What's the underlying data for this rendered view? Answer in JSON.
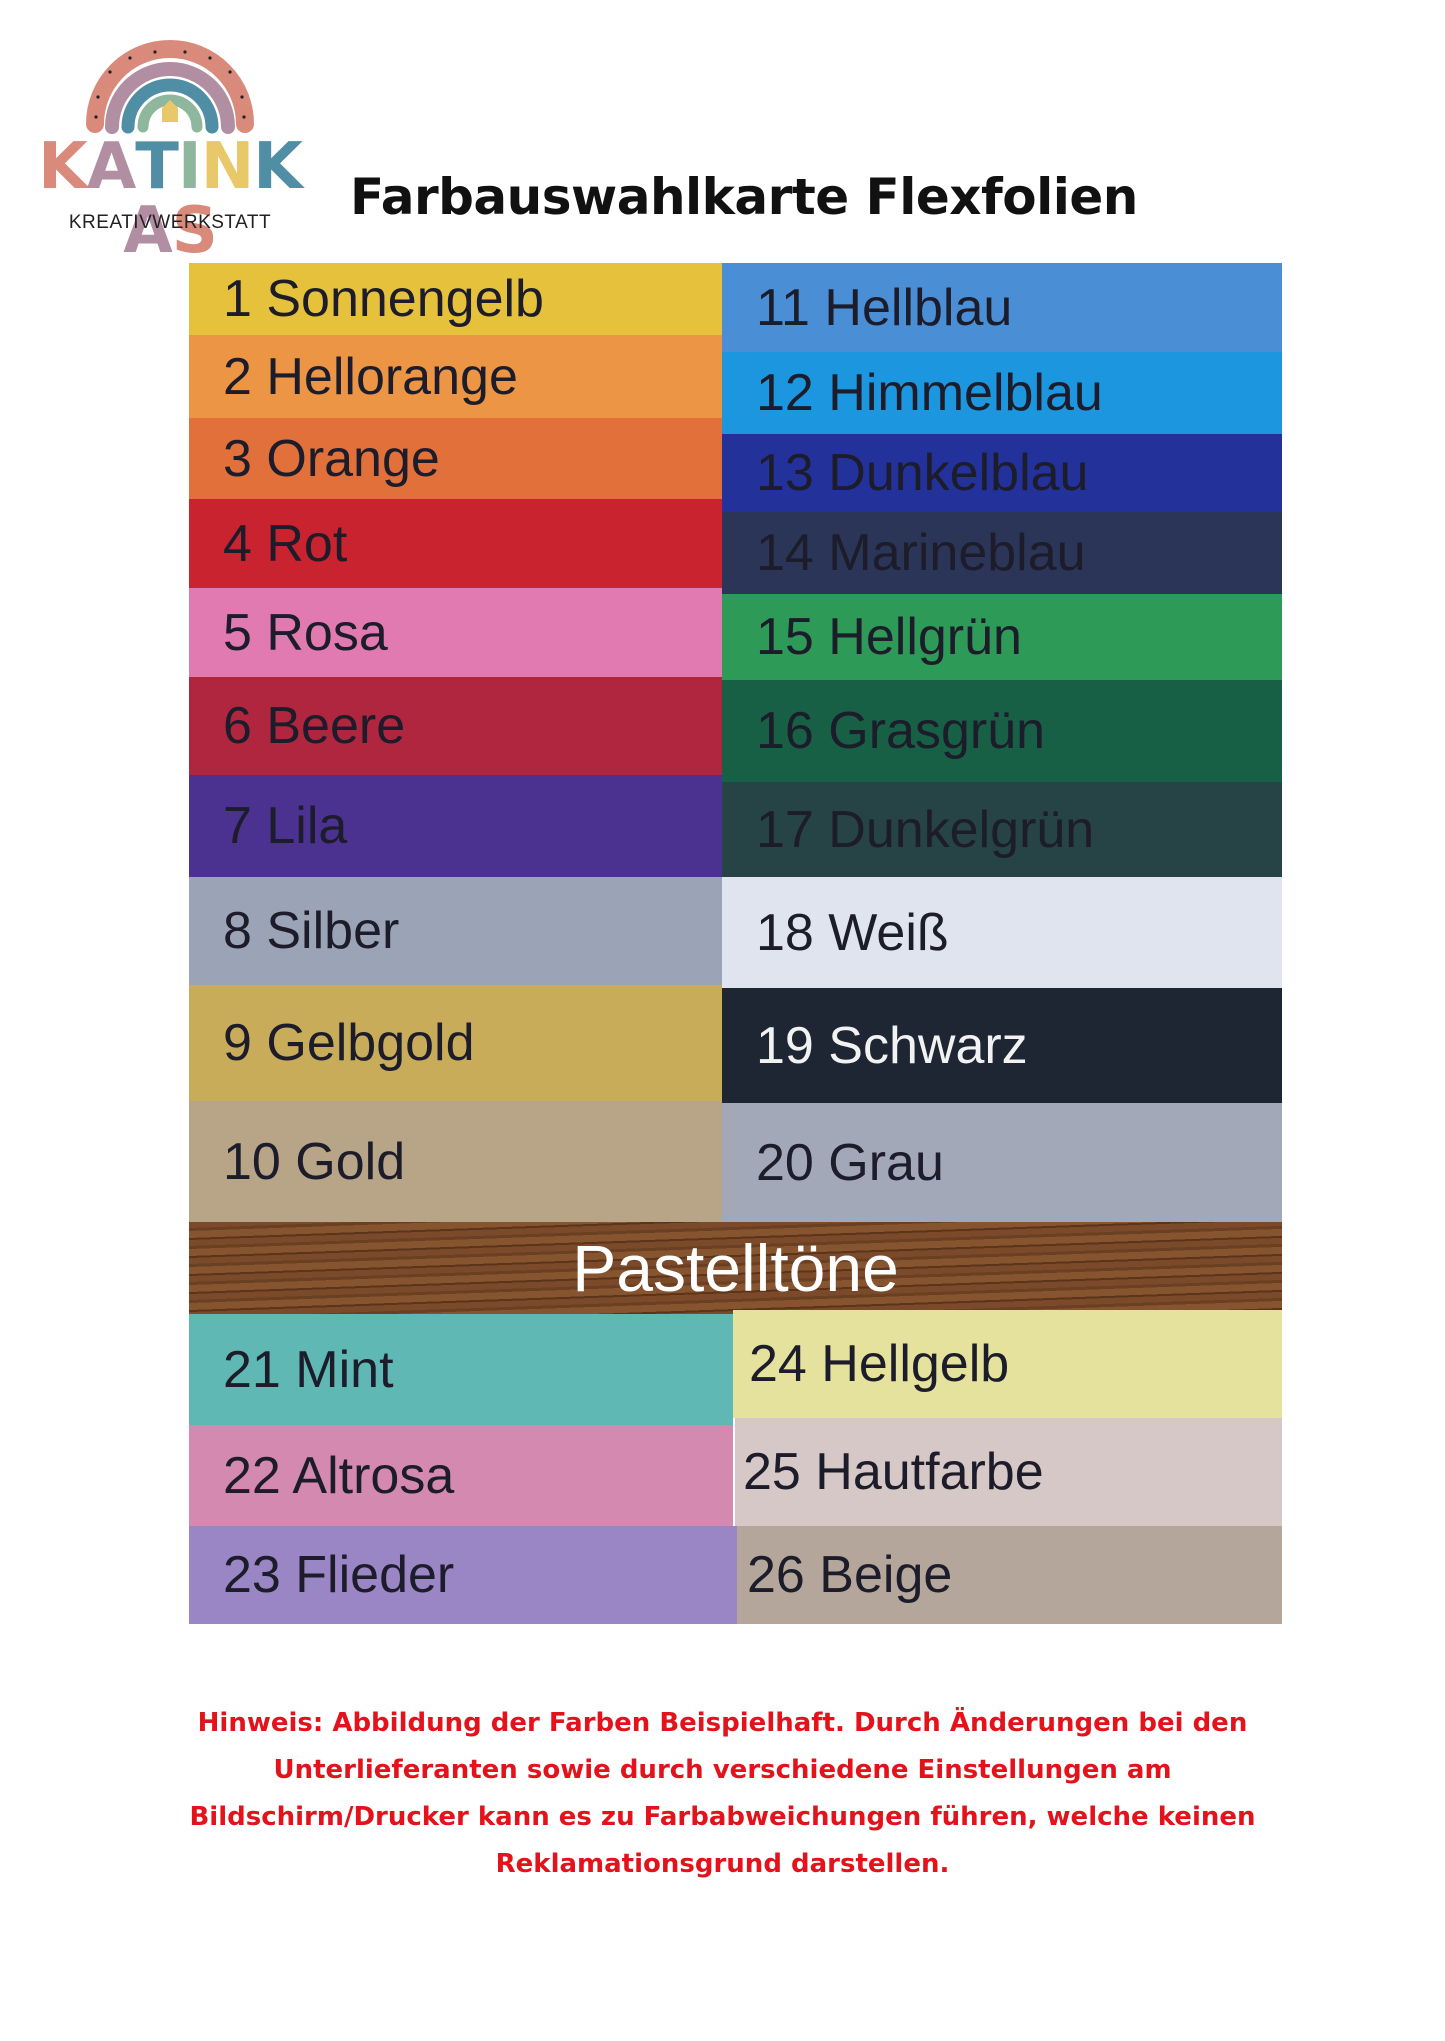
{
  "logo": {
    "brand_letters": [
      "K",
      "A",
      "T",
      "I",
      "N",
      "K",
      "A",
      "S"
    ],
    "brand_colors": [
      "#d98a7b",
      "#b28ea2",
      "#4f8ea4",
      "#8fb79e",
      "#e9c86a",
      "#4f8ea4",
      "#b28ea2",
      "#d98a7b"
    ],
    "subtitle": "KREATIVWERKSTATT",
    "rainbow_colors": [
      "#d98a7b",
      "#b28ea2",
      "#4f8ea4",
      "#8fb79e",
      "#e9c86a"
    ]
  },
  "title": "Farbauswahlkarte Flexfolien",
  "colors": [
    {
      "label": "1 Sonnengelb",
      "hex": "#e6c23c"
    },
    {
      "label": "2 Hellorange",
      "hex": "#ec9545"
    },
    {
      "label": "3 Orange",
      "hex": "#e2703a"
    },
    {
      "label": "4 Rot",
      "hex": "#c8232e"
    },
    {
      "label": "5 Rosa",
      "hex": "#e17ab0"
    },
    {
      "label": "6 Beere",
      "hex": "#b0263f"
    },
    {
      "label": "7 Lila",
      "hex": "#4b3290"
    },
    {
      "label": "8 Silber",
      "hex": "#9ba4b6"
    },
    {
      "label": "9 Gelbgold",
      "hex": "#c9ac5a"
    },
    {
      "label": "10 Gold",
      "hex": "#b8a486"
    },
    {
      "label": "11 Hellblau",
      "hex": "#4a8fd6"
    },
    {
      "label": "12 Himmelblau",
      "hex": "#1c97df"
    },
    {
      "label": "13 Dunkelblau",
      "hex": "#23329a"
    },
    {
      "label": "14 Marineblau",
      "hex": "#2b3558"
    },
    {
      "label": "15 Hellgrün",
      "hex": "#2e9a57"
    },
    {
      "label": "16 Grasgrün",
      "hex": "#176045"
    },
    {
      "label": "17 Dunkelgrün",
      "hex": "#264345"
    },
    {
      "label": "18 Weiß",
      "hex": "#dfe4ee"
    },
    {
      "label": "19 Schwarz",
      "hex": "#1e2533"
    },
    {
      "label": "20 Grau",
      "hex": "#a3a8b8"
    }
  ],
  "pastel_heading": "Pastelltöne",
  "pastel": [
    {
      "label": "21 Mint",
      "hex": "#5fb8b4"
    },
    {
      "label": "22 Altrosa",
      "hex": "#d48ab0"
    },
    {
      "label": "23 Flieder",
      "hex": "#9a86c4"
    },
    {
      "label": "24 Hellgelb",
      "hex": "#e4e29c"
    },
    {
      "label": "25 Hautfarbe",
      "hex": "#d6c8c6"
    },
    {
      "label": "26 Beige",
      "hex": "#b4a69a"
    }
  ],
  "note_lines": [
    "Hinweis: Abbildung der Farben Beispielhaft. Durch Änderungen bei den",
    "Unterlieferanten sowie durch verschiedene Einstellungen am",
    "Bildschirm/Drucker kann es zu Farbabweichungen führen, welche keinen",
    "Reklamationsgrund darstellen."
  ]
}
